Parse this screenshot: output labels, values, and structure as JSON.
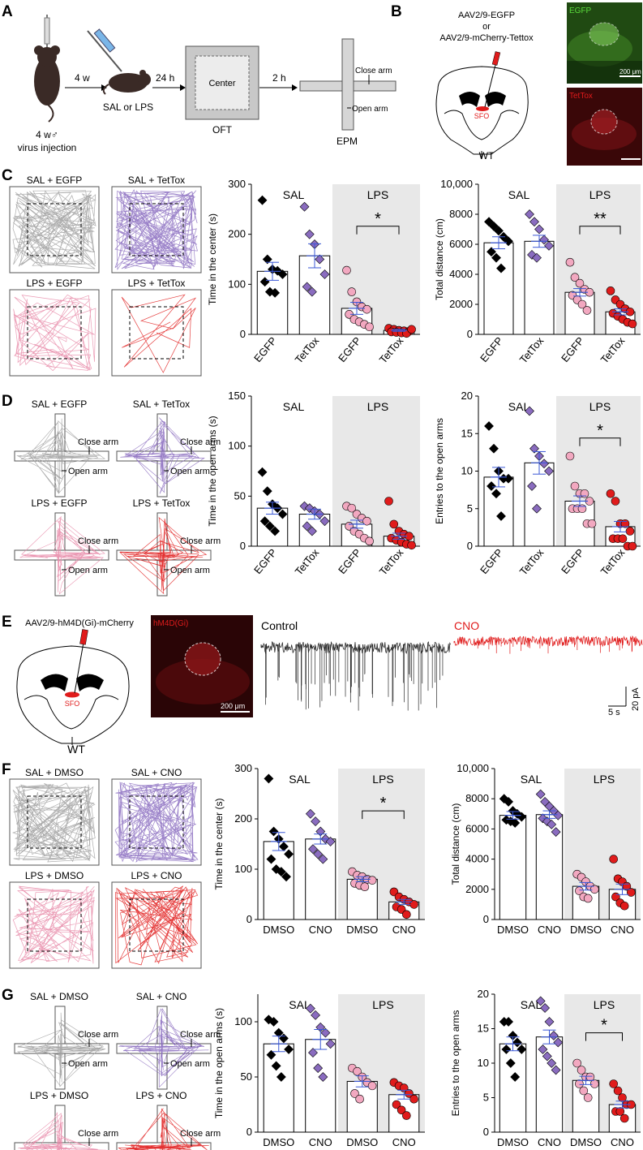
{
  "panels": {
    "A": {
      "letter": "A",
      "syringe_label": "",
      "mouse_caption": [
        "4 w♂",
        "virus injection"
      ],
      "step1": "4 w",
      "treatment": "SAL or LPS",
      "step2": "24 h",
      "oft_center": "Center",
      "oft_caption": "OFT",
      "step3": "2 h",
      "epm_close": "Close arm",
      "epm_open": "Open arm",
      "epm_caption": "EPM"
    },
    "B": {
      "letter": "B",
      "virus_line1": "AAV2/9-EGFP",
      "virus_line2": "or",
      "virus_line3": "AAV2/9-mCherry-Tettox",
      "region": "SFO",
      "genotype": "WT",
      "img1_label": "EGFP",
      "img1_scale": "200 μm",
      "img2_label": "TetTox"
    },
    "C": {
      "letter": "C",
      "track_labels": [
        "SAL + EGFP",
        "SAL + TetTox",
        "LPS + EGFP",
        "LPS + TetTox"
      ]
    },
    "D": {
      "letter": "D",
      "track_labels": [
        "SAL + EGFP",
        "SAL + TetTox",
        "LPS + EGFP",
        "LPS + TetTox"
      ],
      "close_arm": "Close arm",
      "open_arm": "Open arm"
    },
    "E": {
      "letter": "E",
      "virus": "AAV2/9-hM4D(Gi)-mCherry",
      "region": "SFO",
      "genotype": "WT",
      "img_label": "hM4D(Gi)",
      "img_scale": "200 μm",
      "trace1_label": "Control",
      "trace2_label": "CNO",
      "scale_time": "5 s",
      "scale_current": "20 pA"
    },
    "F": {
      "letter": "F",
      "track_labels": [
        "SAL + DMSO",
        "SAL + CNO",
        "LPS + DMSO",
        "LPS + CNO"
      ]
    },
    "G": {
      "letter": "G",
      "track_labels": [
        "SAL + DMSO",
        "SAL + CNO",
        "LPS + DMSO",
        "LPS + CNO"
      ],
      "close_arm": "Close arm",
      "open_arm": "Open arm"
    }
  },
  "colors": {
    "black": "#000000",
    "gray": "#9e9e9e",
    "purple": "#8a6cbf",
    "pink": "#e88aa8",
    "red": "#e01b1b",
    "shade": "#e8e8e8",
    "sem": "#3b58d6"
  },
  "chart_data": [
    {
      "id": "C-center",
      "type": "bar",
      "ylabel": "Time in the center (s)",
      "ylim": [
        0,
        300
      ],
      "yticks": [
        0,
        100,
        200,
        300
      ],
      "groups": [
        "SAL",
        "LPS"
      ],
      "categories": [
        "EGFP",
        "TetTox",
        "EGFP",
        "TetTox"
      ],
      "means": [
        126,
        157,
        52,
        8
      ],
      "sems": [
        18,
        24,
        12,
        2
      ],
      "points": [
        [
          268,
          150,
          130,
          127,
          120,
          105,
          85,
          83
        ],
        [
          255,
          200,
          180,
          150,
          120,
          95,
          85
        ],
        [
          128,
          85,
          65,
          55,
          50,
          40,
          30,
          25,
          20,
          15
        ],
        [
          12,
          10,
          8,
          7,
          6,
          5,
          4,
          3,
          2,
          10
        ]
      ],
      "annotation": "*",
      "annot_pair": [
        2,
        3
      ]
    },
    {
      "id": "C-distance",
      "type": "bar",
      "ylabel": "Total distance (cm)",
      "ylim": [
        0,
        10000
      ],
      "yticks": [
        0,
        2000,
        4000,
        6000,
        8000,
        "10,000"
      ],
      "groups": [
        "SAL",
        "LPS"
      ],
      "categories": [
        "EGFP",
        "TetTox",
        "EGFP",
        "TetTox"
      ],
      "means": [
        6100,
        6200,
        2800,
        1500
      ],
      "sems": [
        400,
        400,
        250,
        200
      ],
      "points": [
        [
          7500,
          7200,
          6900,
          6500,
          6200,
          5500,
          5100,
          4400
        ],
        [
          8000,
          7500,
          7000,
          6300,
          5900,
          5300,
          5100
        ],
        [
          4800,
          3800,
          3400,
          3000,
          2800,
          2600,
          2300,
          2000,
          1600
        ],
        [
          2900,
          2300,
          2000,
          1700,
          1500,
          1400,
          1200,
          1000,
          800,
          700
        ]
      ],
      "annotation": "**",
      "annot_pair": [
        2,
        3
      ]
    },
    {
      "id": "D-open-time",
      "type": "bar",
      "ylabel": "Time in the open arms (s)",
      "ylim": [
        0,
        150
      ],
      "yticks": [
        0,
        50,
        100,
        150
      ],
      "groups": [
        "SAL",
        "LPS"
      ],
      "categories": [
        "EGFP",
        "TetTox",
        "EGFP",
        "TetTox"
      ],
      "means": [
        38,
        32,
        22,
        10
      ],
      "sems": [
        6,
        5,
        4,
        3
      ],
      "points": [
        [
          74,
          55,
          42,
          38,
          32,
          25,
          20,
          15
        ],
        [
          40,
          38,
          35,
          32,
          25,
          20,
          15
        ],
        [
          40,
          38,
          32,
          28,
          25,
          20,
          15,
          12,
          8,
          5
        ],
        [
          45,
          22,
          15,
          12,
          10,
          8,
          6,
          4,
          2,
          1
        ]
      ],
      "annotation": "",
      "annot_pair": []
    },
    {
      "id": "D-entries",
      "type": "bar",
      "ylabel": "Entries to the open arms",
      "ylim": [
        0,
        20
      ],
      "yticks": [
        0,
        5,
        10,
        15,
        20
      ],
      "groups": [
        "SAL",
        "LPS"
      ],
      "categories": [
        "EGFP",
        "TetTox",
        "EGFP",
        "TetTox"
      ],
      "means": [
        9.2,
        11.1,
        6.0,
        2.6
      ],
      "sems": [
        1.3,
        1.5,
        0.7,
        0.7
      ],
      "points": [
        [
          16,
          13,
          10,
          9,
          9,
          8,
          7,
          4
        ],
        [
          18,
          13,
          12,
          11,
          10,
          8,
          5
        ],
        [
          12,
          8,
          7,
          7,
          6,
          5,
          5,
          5,
          3,
          3
        ],
        [
          7,
          6,
          3,
          3,
          2,
          1,
          1,
          1,
          0,
          0
        ]
      ],
      "annotation": "*",
      "annot_pair": [
        2,
        3
      ]
    },
    {
      "id": "F-center",
      "type": "bar",
      "ylabel": "Time in the center (s)",
      "ylim": [
        0,
        300
      ],
      "yticks": [
        0,
        100,
        200,
        300
      ],
      "groups": [
        "SAL",
        "LPS"
      ],
      "categories": [
        "DMSO",
        "CNO",
        "DMSO",
        "CNO"
      ],
      "means": [
        155,
        160,
        80,
        35
      ],
      "sems": [
        18,
        10,
        5,
        5
      ],
      "points": [
        [
          280,
          175,
          160,
          145,
          130,
          120,
          100,
          95,
          85
        ],
        [
          210,
          195,
          175,
          160,
          155,
          140,
          130,
          120
        ],
        [
          95,
          88,
          85,
          80,
          78,
          72,
          68,
          65
        ],
        [
          55,
          45,
          40,
          35,
          30,
          25,
          20,
          10
        ]
      ],
      "annotation": "*",
      "annot_pair": [
        2,
        3
      ]
    },
    {
      "id": "F-distance",
      "type": "bar",
      "ylabel": "Total distance (cm)",
      "ylim": [
        0,
        10000
      ],
      "yticks": [
        0,
        2000,
        4000,
        6000,
        8000,
        "10,000"
      ],
      "groups": [
        "SAL",
        "LPS"
      ],
      "categories": [
        "DMSO",
        "CNO",
        "DMSO",
        "CNO"
      ],
      "means": [
        6900,
        6950,
        2200,
        2000
      ],
      "sems": [
        250,
        250,
        250,
        350
      ],
      "points": [
        [
          8000,
          7800,
          7200,
          7000,
          6800,
          6600,
          6500,
          6400
        ],
        [
          8300,
          7800,
          7500,
          7200,
          6900,
          6700,
          6500,
          6300,
          5800
        ],
        [
          3000,
          2800,
          2500,
          2200,
          2000,
          1900,
          1500,
          1400
        ],
        [
          4000,
          2700,
          2500,
          2200,
          1800,
          1500,
          1100,
          900
        ]
      ],
      "annotation": "",
      "annot_pair": []
    },
    {
      "id": "G-open-time",
      "type": "bar",
      "ylabel": "Time in the open arms (s)",
      "ylim": [
        0,
        125
      ],
      "yticks": [
        0,
        50,
        100
      ],
      "groups": [
        "SAL",
        "LPS"
      ],
      "categories": [
        "DMSO",
        "CNO",
        "DMSO",
        "CNO"
      ],
      "means": [
        80,
        84,
        46,
        34
      ],
      "sems": [
        7,
        9,
        5,
        4
      ],
      "points": [
        [
          102,
          100,
          90,
          85,
          75,
          70,
          60,
          50
        ],
        [
          112,
          106,
          95,
          90,
          80,
          72,
          58,
          50
        ],
        [
          58,
          55,
          50,
          45,
          42,
          35,
          30
        ],
        [
          45,
          42,
          40,
          35,
          30,
          25,
          20,
          15
        ]
      ],
      "annotation": "",
      "annot_pair": []
    },
    {
      "id": "G-entries",
      "type": "bar",
      "ylabel": "Entries to the open arms",
      "ylim": [
        0,
        20
      ],
      "yticks": [
        0,
        5,
        10,
        15,
        20
      ],
      "groups": [
        "SAL",
        "LPS"
      ],
      "categories": [
        "DMSO",
        "CNO",
        "DMSO",
        "CNO"
      ],
      "means": [
        12.8,
        13.8,
        7.5,
        4.0
      ],
      "sems": [
        1.0,
        1.0,
        0.6,
        0.5
      ],
      "points": [
        [
          16,
          16,
          14,
          13,
          12,
          12,
          10,
          8
        ],
        [
          19,
          18,
          16,
          14,
          13,
          12,
          11,
          10,
          9
        ],
        [
          10,
          9,
          8,
          8,
          7,
          7,
          6,
          5
        ],
        [
          7,
          6,
          5,
          4,
          4,
          3,
          3,
          2
        ]
      ],
      "annotation": "*",
      "annot_pair": [
        2,
        3
      ]
    }
  ]
}
